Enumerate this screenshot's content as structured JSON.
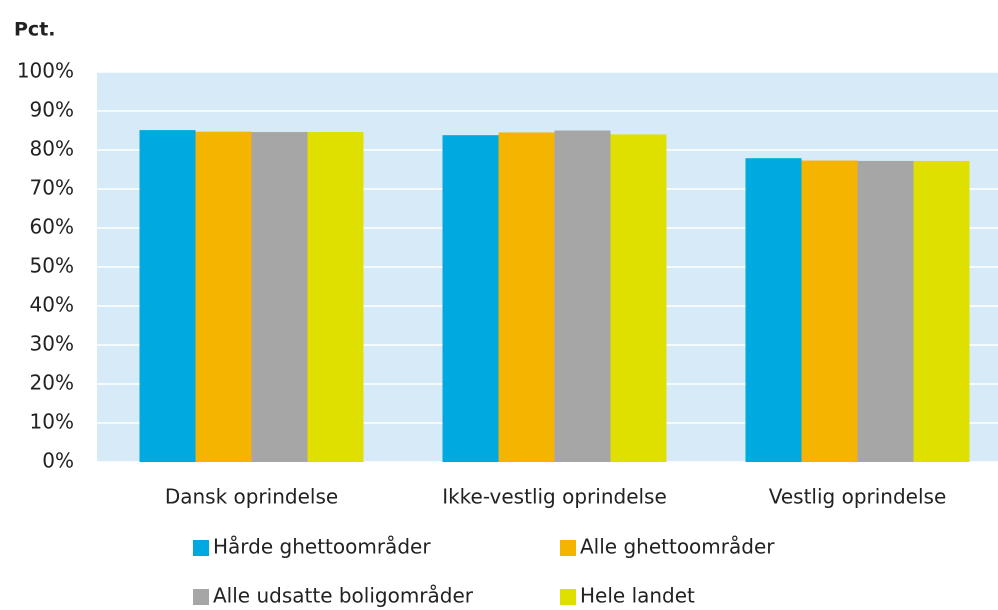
{
  "chart_data": {
    "type": "bar",
    "y_label": "Pct.",
    "categories": [
      "Dansk oprindelse",
      "Ikke-vestlig oprindelse",
      "Vestlig oprindelse"
    ],
    "series": [
      {
        "name": "Hårde ghettoområder",
        "color": "#00a9e0",
        "values": [
          85.1,
          83.8,
          77.9
        ]
      },
      {
        "name": "Alle ghettoområder",
        "color": "#f5b400",
        "values": [
          84.7,
          84.5,
          77.3
        ]
      },
      {
        "name": "Alle udsatte boligområder",
        "color": "#a6a6a6",
        "values": [
          84.6,
          85.0,
          77.2
        ]
      },
      {
        "name": "Hele landet",
        "color": "#e0e000",
        "values": [
          84.6,
          84.0,
          77.2
        ]
      }
    ],
    "ylim": [
      0,
      100
    ],
    "yticks": [
      {
        "value": 0,
        "label": "0%"
      },
      {
        "value": 10,
        "label": "10%"
      },
      {
        "value": 20,
        "label": "20%"
      },
      {
        "value": 30,
        "label": "30%"
      },
      {
        "value": 40,
        "label": "40%"
      },
      {
        "value": 50,
        "label": "50%"
      },
      {
        "value": 60,
        "label": "60%"
      },
      {
        "value": 70,
        "label": "70%"
      },
      {
        "value": 80,
        "label": "80%"
      },
      {
        "value": 90,
        "label": "90%"
      },
      {
        "value": 100,
        "label": "100%"
      }
    ],
    "grid": true
  }
}
